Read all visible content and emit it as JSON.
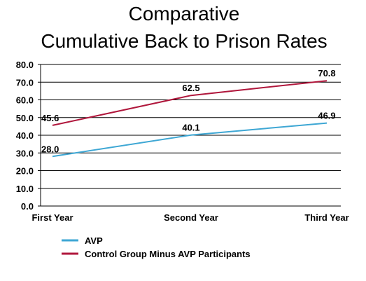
{
  "chart_data": {
    "type": "line",
    "title": [
      "Comparative",
      "Cumulative Back to Prison Rates"
    ],
    "categories": [
      "First Year",
      "Second Year",
      "Third Year"
    ],
    "ylim": [
      0,
      80
    ],
    "yticks": [
      "0.0",
      "10.0",
      "20.0",
      "30.0",
      "40.0",
      "50.0",
      "60.0",
      "70.0",
      "80.0"
    ],
    "grid": true,
    "legend_position": "bottom-left",
    "series": [
      {
        "name": "AVP",
        "values": [
          28.0,
          40.1,
          46.9
        ],
        "labels": [
          "28.0",
          "40.1",
          "46.9"
        ],
        "color": "#3ea7d4"
      },
      {
        "name": "Control Group Minus AVP Participants",
        "values": [
          45.6,
          62.5,
          70.8
        ],
        "labels": [
          "45.6",
          "62.5",
          "70.8"
        ],
        "color": "#b0173c"
      }
    ]
  }
}
